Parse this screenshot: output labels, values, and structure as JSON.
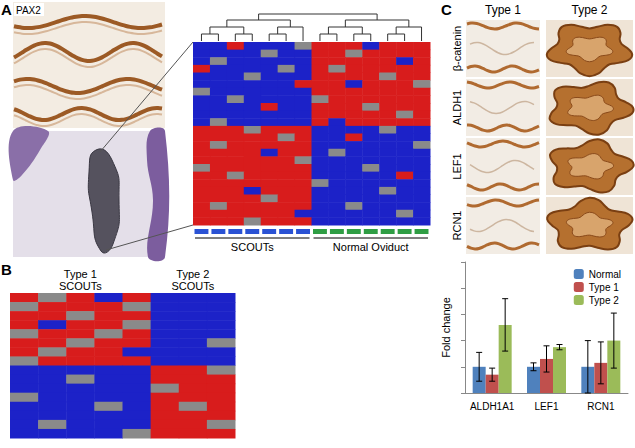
{
  "figure": {
    "panel_labels": [
      "A",
      "B",
      "C"
    ],
    "panel_a": {
      "stain": "PAX2"
    },
    "panel_c": {
      "columns": [
        "Type 1",
        "Type 2"
      ],
      "rows": [
        "β-catenin",
        "ALDH1",
        "LEF1",
        "RCN1"
      ]
    }
  },
  "chart_data": [
    {
      "type": "heatmap",
      "tick_labels": false,
      "groups": [
        {
          "name": "SCOUTs",
          "color": "#2a52d4",
          "columns": 7
        },
        {
          "name": "Normal Oviduct",
          "color": "#2f9e44",
          "columns": 7
        }
      ],
      "cells": [
        [
          -1,
          -1,
          1,
          -1,
          -1,
          -1,
          0,
          1,
          1,
          1,
          -1,
          1,
          1,
          1
        ],
        [
          -1,
          -1,
          -1,
          -1,
          0,
          -1,
          -1,
          1,
          1,
          0,
          1,
          1,
          1,
          1
        ],
        [
          -1,
          0,
          -1,
          -1,
          -1,
          -1,
          -1,
          1,
          1,
          1,
          1,
          1,
          -1,
          1
        ],
        [
          1,
          -1,
          -1,
          -1,
          -1,
          0,
          -1,
          1,
          0,
          1,
          1,
          1,
          1,
          1
        ],
        [
          -1,
          -1,
          -1,
          0,
          -1,
          -1,
          -1,
          1,
          1,
          1,
          1,
          0,
          1,
          1
        ],
        [
          -1,
          -1,
          -1,
          -1,
          -1,
          -1,
          1,
          1,
          1,
          -1,
          1,
          1,
          1,
          0
        ],
        [
          0,
          -1,
          -1,
          -1,
          -1,
          -1,
          -1,
          1,
          1,
          1,
          1,
          1,
          1,
          1
        ],
        [
          -1,
          -1,
          0,
          -1,
          -1,
          -1,
          -1,
          0,
          1,
          1,
          1,
          1,
          1,
          1
        ],
        [
          -1,
          -1,
          -1,
          -1,
          1,
          -1,
          -1,
          1,
          1,
          1,
          0,
          1,
          1,
          1
        ],
        [
          -1,
          -1,
          -1,
          -1,
          -1,
          -1,
          -1,
          1,
          1,
          1,
          1,
          1,
          0,
          1
        ],
        [
          -1,
          0,
          -1,
          -1,
          -1,
          -1,
          -1,
          1,
          -1,
          1,
          1,
          1,
          1,
          1
        ],
        [
          1,
          1,
          1,
          0,
          1,
          1,
          1,
          -1,
          -1,
          -1,
          -1,
          0,
          -1,
          -1
        ],
        [
          1,
          1,
          1,
          1,
          1,
          0,
          1,
          -1,
          -1,
          1,
          -1,
          -1,
          -1,
          -1
        ],
        [
          1,
          0,
          1,
          1,
          1,
          1,
          1,
          -1,
          -1,
          -1,
          -1,
          -1,
          -1,
          0
        ],
        [
          1,
          1,
          1,
          1,
          -1,
          1,
          1,
          -1,
          0,
          -1,
          -1,
          -1,
          -1,
          -1
        ],
        [
          1,
          1,
          1,
          1,
          1,
          1,
          0,
          -1,
          -1,
          -1,
          -1,
          -1,
          -1,
          -1
        ],
        [
          0,
          1,
          1,
          1,
          1,
          1,
          1,
          -1,
          -1,
          -1,
          0,
          -1,
          -1,
          -1
        ],
        [
          1,
          1,
          0,
          1,
          1,
          1,
          1,
          -1,
          -1,
          -1,
          -1,
          -1,
          1,
          -1
        ],
        [
          1,
          1,
          1,
          1,
          1,
          1,
          1,
          0,
          -1,
          -1,
          -1,
          -1,
          -1,
          -1
        ],
        [
          1,
          1,
          1,
          -1,
          1,
          1,
          1,
          -1,
          -1,
          -1,
          -1,
          0,
          -1,
          -1
        ],
        [
          1,
          1,
          1,
          1,
          0,
          1,
          1,
          -1,
          -1,
          -1,
          -1,
          -1,
          -1,
          -1
        ],
        [
          1,
          0,
          1,
          1,
          1,
          1,
          1,
          -1,
          -1,
          0,
          -1,
          -1,
          -1,
          -1
        ],
        [
          1,
          1,
          1,
          1,
          1,
          1,
          -1,
          -1,
          -1,
          -1,
          -1,
          -1,
          0,
          -1
        ],
        [
          1,
          1,
          1,
          0,
          1,
          1,
          1,
          -1,
          -1,
          -1,
          -1,
          -1,
          -1,
          -1
        ]
      ]
    },
    {
      "type": "heatmap",
      "tick_labels": false,
      "groups": [
        {
          "name": [
            "Type 1",
            "SCOUTs"
          ],
          "columns": 5
        },
        {
          "name": [
            "Type 2",
            "SCOUTs"
          ],
          "columns": 3
        }
      ],
      "cells": [
        [
          1,
          0,
          1,
          -1,
          1,
          -1,
          -1,
          -1
        ],
        [
          0,
          1,
          1,
          1,
          0,
          -1,
          -1,
          -1
        ],
        [
          1,
          1,
          0,
          1,
          1,
          -1,
          -1,
          -1
        ],
        [
          1,
          -1,
          1,
          1,
          0,
          -1,
          -1,
          -1
        ],
        [
          0,
          1,
          1,
          0,
          1,
          -1,
          -1,
          -1
        ],
        [
          1,
          1,
          0,
          1,
          1,
          -1,
          -1,
          0
        ],
        [
          1,
          0,
          1,
          1,
          -1,
          -1,
          -1,
          -1
        ],
        [
          0,
          1,
          1,
          1,
          1,
          -1,
          -1,
          -1
        ],
        [
          -1,
          -1,
          -1,
          -1,
          -1,
          1,
          1,
          0
        ],
        [
          -1,
          -1,
          0,
          -1,
          -1,
          1,
          1,
          1
        ],
        [
          -1,
          -1,
          -1,
          -1,
          -1,
          0,
          1,
          1
        ],
        [
          0,
          -1,
          -1,
          -1,
          -1,
          1,
          1,
          1
        ],
        [
          -1,
          -1,
          -1,
          0,
          -1,
          1,
          0,
          1
        ],
        [
          -1,
          -1,
          -1,
          -1,
          -1,
          1,
          1,
          1
        ],
        [
          -1,
          0,
          -1,
          -1,
          -1,
          1,
          1,
          0
        ],
        [
          -1,
          -1,
          -1,
          -1,
          0,
          1,
          1,
          1
        ]
      ]
    },
    {
      "type": "bar",
      "y_label": "Fold change",
      "categories": [
        "ALDH1A1",
        "LEF1",
        "RCN1"
      ],
      "series": [
        {
          "name": "Normal",
          "color": "#4f81bd",
          "values": [
            1,
            1,
            1
          ],
          "errors": [
            0.55,
            0.15,
            1.0
          ]
        },
        {
          "name": "Type 1",
          "color": "#c0504d",
          "values": [
            0.7,
            1.3,
            1.15
          ],
          "errors": [
            0.25,
            0.5,
            0.8
          ]
        },
        {
          "name": "Type 2",
          "color": "#9bbb59",
          "values": [
            2.6,
            1.75,
            2.0
          ],
          "errors": [
            1.0,
            0.1,
            1.05
          ]
        }
      ],
      "ylim": [
        0,
        5
      ],
      "yticks": [
        0,
        1,
        2,
        3,
        4,
        5
      ],
      "tick_labels": "x",
      "legend": "top-right",
      "grid": false
    }
  ]
}
